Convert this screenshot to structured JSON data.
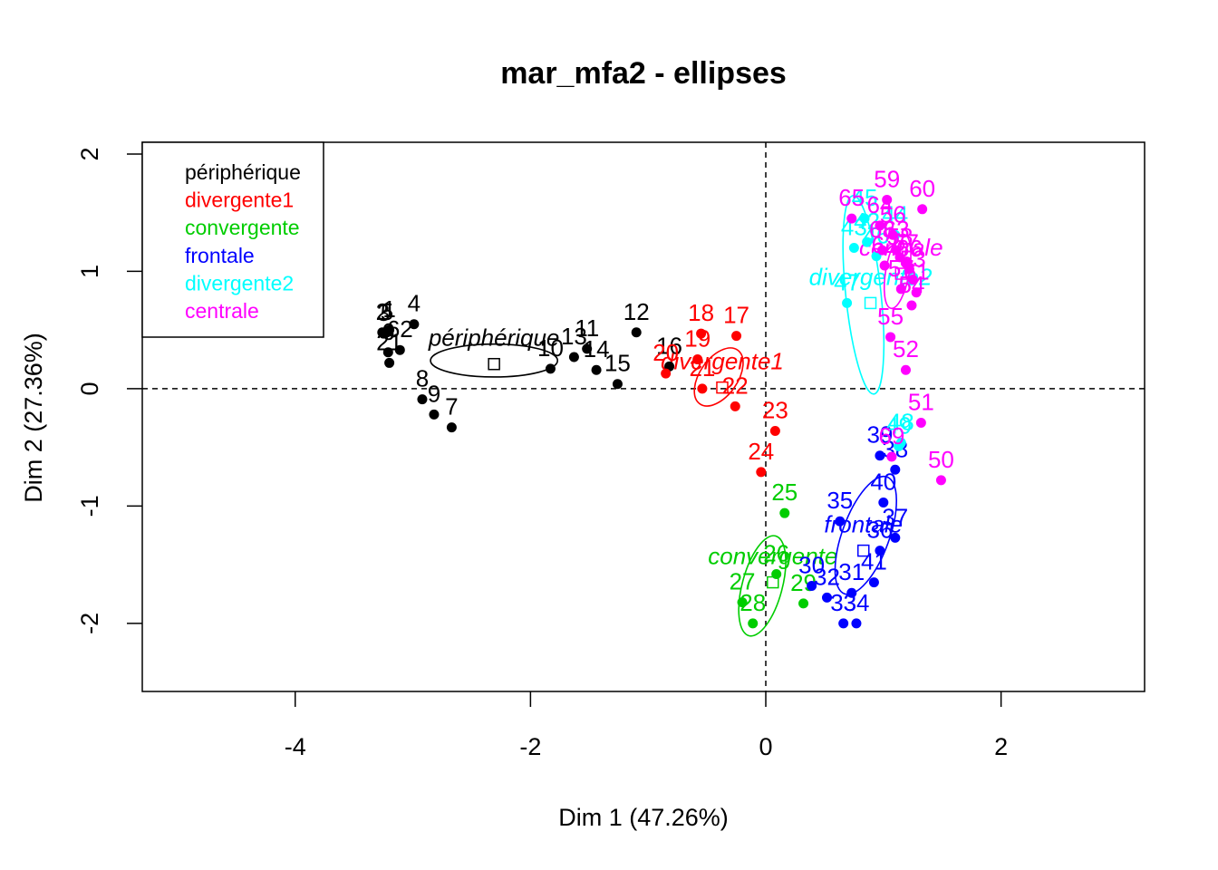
{
  "chart_data": {
    "type": "scatter",
    "title": "mar_mfa2 - ellipses",
    "xlabel": "Dim 1 (47.26%)",
    "ylabel": "Dim 2 (27.36%)",
    "xlim": [
      -5.3,
      3.22
    ],
    "ylim": [
      -2.58,
      2.1
    ],
    "x_ticks": [
      -4,
      -2,
      0,
      2
    ],
    "y_ticks": [
      -2,
      -1,
      0,
      1,
      2
    ],
    "x_tick_labels": [
      "-4",
      "-2",
      "0",
      "2"
    ],
    "y_tick_labels": [
      "-2",
      "-1",
      "0",
      "1",
      "2"
    ],
    "reference_lines": {
      "x": 0,
      "y": 0,
      "style": "dashed"
    },
    "legend": {
      "position": "top-left",
      "entries": [
        {
          "label": "périphérique",
          "color": "#000000"
        },
        {
          "label": "divergente1",
          "color": "#ff0000"
        },
        {
          "label": "convergente",
          "color": "#00cd00"
        },
        {
          "label": "frontale",
          "color": "#0000ff"
        },
        {
          "label": "divergente2",
          "color": "#00ffff"
        },
        {
          "label": "centrale",
          "color": "#ff00ff"
        }
      ]
    },
    "groups": [
      {
        "name": "périphérique",
        "color": "#000000",
        "centroid": [
          -2.31,
          0.21
        ],
        "ellipse": {
          "cx": -2.31,
          "cy": 0.24,
          "rx": 0.54,
          "ry": 0.14,
          "angle": 0
        },
        "points": [
          {
            "label": "1",
            "x": -3.2,
            "y": 0.5
          },
          {
            "label": "2",
            "x": -3.26,
            "y": 0.48
          },
          {
            "label": "3",
            "x": -3.25,
            "y": 0.47
          },
          {
            "label": "4",
            "x": -2.99,
            "y": 0.55
          },
          {
            "label": "5",
            "x": -3.22,
            "y": 0.48
          },
          {
            "label": "6",
            "x": -3.21,
            "y": 0.31
          },
          {
            "label": "7",
            "x": -2.67,
            "y": -0.33
          },
          {
            "label": "8",
            "x": -2.92,
            "y": -0.09
          },
          {
            "label": "9",
            "x": -2.82,
            "y": -0.22
          },
          {
            "label": "10",
            "x": -1.83,
            "y": 0.17
          },
          {
            "label": "11",
            "x": -1.52,
            "y": 0.34
          },
          {
            "label": "12",
            "x": -1.1,
            "y": 0.48
          },
          {
            "label": "13",
            "x": -1.63,
            "y": 0.27
          },
          {
            "label": "14",
            "x": -1.44,
            "y": 0.16
          },
          {
            "label": "15",
            "x": -1.26,
            "y": 0.04
          },
          {
            "label": "16",
            "x": -0.82,
            "y": 0.19
          },
          {
            "label": "21",
            "x": -3.2,
            "y": 0.22
          },
          {
            "label": "62",
            "x": -3.11,
            "y": 0.33
          }
        ]
      },
      {
        "name": "divergente1",
        "color": "#ff0000",
        "centroid": [
          -0.37,
          0.01
        ],
        "ellipse": {
          "cx": -0.4,
          "cy": 0.1,
          "rx": 0.16,
          "ry": 0.28,
          "angle": 35
        },
        "points": [
          {
            "label": "17",
            "x": -0.25,
            "y": 0.45
          },
          {
            "label": "18",
            "x": -0.55,
            "y": 0.47
          },
          {
            "label": "19",
            "x": -0.58,
            "y": 0.25
          },
          {
            "label": "20",
            "x": -0.85,
            "y": 0.13
          },
          {
            "label": "21",
            "x": -0.54,
            "y": 0.0
          },
          {
            "label": "22",
            "x": -0.26,
            "y": -0.15
          },
          {
            "label": "23",
            "x": 0.08,
            "y": -0.36
          },
          {
            "label": "24",
            "x": -0.04,
            "y": -0.71
          }
        ]
      },
      {
        "name": "convergente",
        "color": "#00cd00",
        "centroid": [
          0.06,
          -1.65
        ],
        "ellipse": {
          "cx": -0.03,
          "cy": -1.68,
          "rx": 0.17,
          "ry": 0.44,
          "angle": 15
        },
        "points": [
          {
            "label": "25",
            "x": 0.16,
            "y": -1.06
          },
          {
            "label": "26",
            "x": 0.09,
            "y": -1.58
          },
          {
            "label": "27",
            "x": -0.2,
            "y": -1.82
          },
          {
            "label": "28",
            "x": -0.11,
            "y": -2.0
          },
          {
            "label": "29",
            "x": 0.32,
            "y": -1.83
          }
        ]
      },
      {
        "name": "frontale",
        "color": "#0000ff",
        "centroid": [
          0.83,
          -1.38
        ],
        "ellipse": {
          "cx": 0.85,
          "cy": -1.25,
          "rx": 0.2,
          "ry": 0.53,
          "angle": 20
        },
        "points": [
          {
            "label": "30",
            "x": 0.39,
            "y": -1.68
          },
          {
            "label": "31",
            "x": 0.73,
            "y": -1.74
          },
          {
            "label": "32",
            "x": 0.52,
            "y": -1.78
          },
          {
            "label": "33",
            "x": 0.66,
            "y": -2.0
          },
          {
            "label": "34",
            "x": 0.77,
            "y": -2.0
          },
          {
            "label": "35",
            "x": 0.63,
            "y": -1.13
          },
          {
            "label": "36",
            "x": 0.97,
            "y": -1.38
          },
          {
            "label": "37",
            "x": 1.1,
            "y": -1.27
          },
          {
            "label": "38",
            "x": 1.1,
            "y": -0.69
          },
          {
            "label": "39",
            "x": 0.97,
            "y": -0.57
          },
          {
            "label": "40",
            "x": 1.0,
            "y": -0.97
          },
          {
            "label": "41",
            "x": 0.92,
            "y": -1.65
          }
        ]
      },
      {
        "name": "divergente2",
        "color": "#00ffff",
        "centroid": [
          0.89,
          0.73
        ],
        "ellipse": {
          "cx": 0.83,
          "cy": 0.8,
          "rx": 0.15,
          "ry": 0.85,
          "angle": -6
        },
        "points": [
          {
            "label": "42",
            "x": 0.86,
            "y": 1.25
          },
          {
            "label": "43",
            "x": 0.75,
            "y": 1.2
          },
          {
            "label": "44",
            "x": 1.1,
            "y": 1.31
          },
          {
            "label": "45",
            "x": 0.84,
            "y": 1.45
          },
          {
            "label": "46",
            "x": 0.94,
            "y": 1.13
          },
          {
            "label": "47",
            "x": 0.69,
            "y": 0.73
          },
          {
            "label": "48",
            "x": 1.15,
            "y": -0.46
          },
          {
            "label": "49",
            "x": 1.13,
            "y": -0.49
          }
        ]
      },
      {
        "name": "centrale",
        "color": "#ff00ff",
        "centroid": [
          1.15,
          0.98
        ],
        "ellipse": {
          "cx": 1.12,
          "cy": 1.0,
          "rx": 0.1,
          "ry": 0.32,
          "angle": 10
        },
        "points": [
          {
            "label": "50",
            "x": 1.49,
            "y": -0.78
          },
          {
            "label": "51",
            "x": 1.32,
            "y": -0.29
          },
          {
            "label": "52",
            "x": 1.19,
            "y": 0.16
          },
          {
            "label": "53",
            "x": 1.25,
            "y": 0.93
          },
          {
            "label": "54",
            "x": 1.24,
            "y": 0.71
          },
          {
            "label": "55",
            "x": 1.06,
            "y": 0.44
          },
          {
            "label": "56",
            "x": 1.08,
            "y": 1.31
          },
          {
            "label": "57",
            "x": 1.15,
            "y": 0.85
          },
          {
            "label": "58",
            "x": 1.14,
            "y": 1.12
          },
          {
            "label": "59",
            "x": 1.03,
            "y": 1.61
          },
          {
            "label": "60",
            "x": 1.33,
            "y": 1.53
          },
          {
            "label": "61",
            "x": 1.28,
            "y": 0.82
          },
          {
            "label": "62",
            "x": 1.01,
            "y": 1.05
          },
          {
            "label": "63",
            "x": 1.11,
            "y": 1.18
          },
          {
            "label": "64",
            "x": 0.97,
            "y": 1.39
          },
          {
            "label": "65",
            "x": 0.73,
            "y": 1.45
          },
          {
            "label": "66",
            "x": 1.22,
            "y": 1.02
          },
          {
            "label": "67",
            "x": 1.19,
            "y": 1.07
          },
          {
            "label": "68",
            "x": 0.99,
            "y": 1.18
          },
          {
            "label": "69",
            "x": 1.07,
            "y": -0.58
          }
        ]
      }
    ]
  }
}
